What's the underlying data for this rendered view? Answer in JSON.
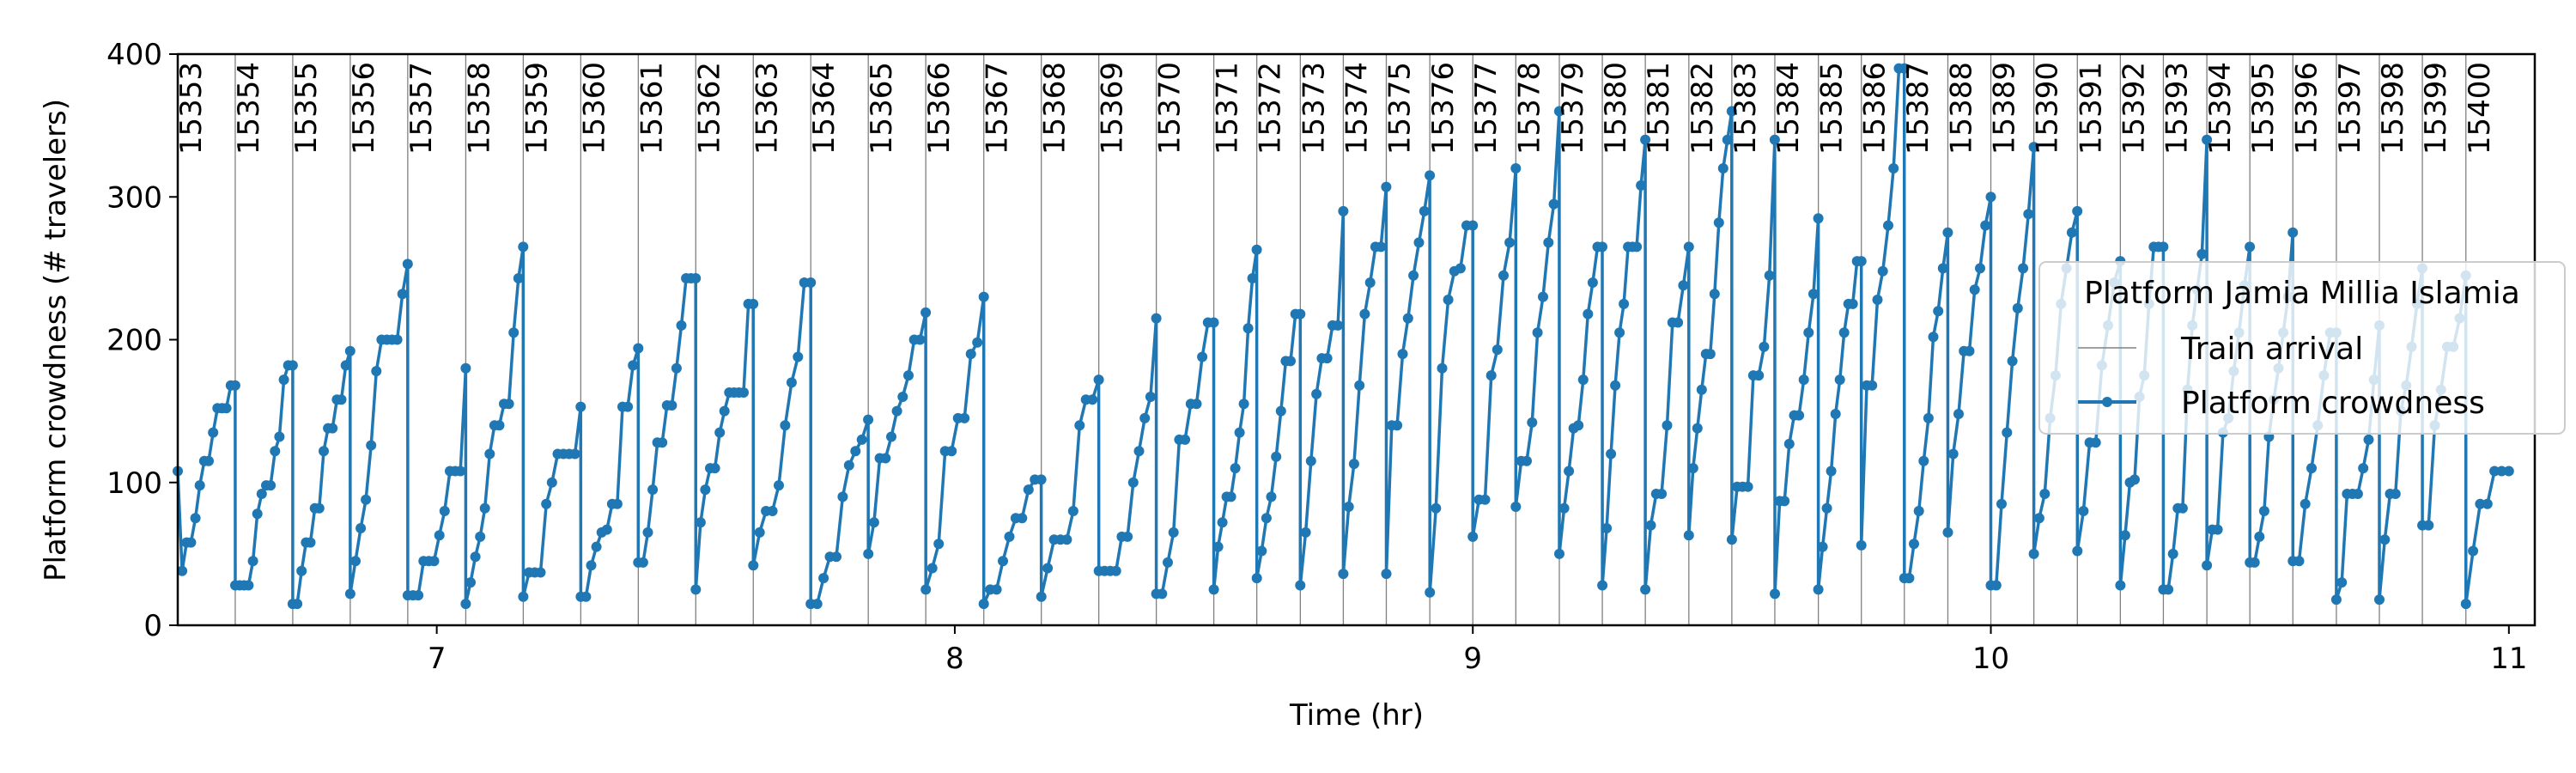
{
  "chart_data": {
    "type": "line",
    "xlabel": "Time (hr)",
    "ylabel": "Platform crowdness (# travelers)",
    "xlim": [
      6.5,
      11.05
    ],
    "ylim": [
      0,
      400
    ],
    "xticks": [
      7,
      8,
      9,
      10,
      11
    ],
    "yticks": [
      0,
      100,
      200,
      300,
      400
    ],
    "grid": false,
    "legend": {
      "title": "Platform Jamia Millia Islamia",
      "placement": "right",
      "entries": [
        "Train arrival",
        "Platform crowdness"
      ]
    },
    "colors": {
      "crowdness": "#1f77b4",
      "train_arrival": "#808080"
    },
    "train_arrivals": {
      "name": "Train arrival",
      "trains": [
        "15353",
        "15354",
        "15355",
        "15356",
        "15357",
        "15358",
        "15359",
        "15360",
        "15361",
        "15362",
        "15363",
        "15364",
        "15365",
        "15366",
        "15367",
        "15368",
        "15369",
        "15370",
        "15371",
        "15372",
        "15373",
        "15374",
        "15375",
        "15376",
        "15377",
        "15378",
        "15379",
        "15380",
        "15381",
        "15382",
        "15383",
        "15384",
        "15385",
        "15386",
        "15387",
        "15388",
        "15389",
        "15390",
        "15391",
        "15392",
        "15393",
        "15394",
        "15395",
        "15396",
        "15397",
        "15398",
        "15399",
        "15400"
      ],
      "times": [
        6.5,
        6.611,
        6.722,
        6.833,
        6.944,
        7.056,
        7.167,
        7.278,
        7.389,
        7.5,
        7.611,
        7.722,
        7.833,
        7.944,
        8.056,
        8.167,
        8.278,
        8.389,
        8.5,
        8.583,
        8.667,
        8.75,
        8.833,
        8.917,
        9.0,
        9.083,
        9.167,
        9.25,
        9.333,
        9.417,
        9.5,
        9.583,
        9.667,
        9.75,
        9.833,
        9.917,
        10.0,
        10.083,
        10.167,
        10.25,
        10.333,
        10.417,
        10.5,
        10.583,
        10.667,
        10.75,
        10.833,
        10.917
      ]
    },
    "series": [
      {
        "name": "Platform crowdness",
        "segments": [
          {
            "start": 6.5,
            "end": 6.611,
            "values": [
              108,
              38,
              58,
              58,
              75,
              98,
              115,
              115,
              135,
              152,
              152,
              152,
              168,
              168
            ]
          },
          {
            "start": 6.611,
            "end": 6.722,
            "values": [
              28,
              28,
              28,
              28,
              45,
              78,
              92,
              98,
              98,
              122,
              132,
              172,
              182,
              182
            ]
          },
          {
            "start": 6.722,
            "end": 6.833,
            "values": [
              15,
              15,
              38,
              58,
              58,
              82,
              82,
              122,
              138,
              138,
              158,
              158,
              182,
              192
            ]
          },
          {
            "start": 6.833,
            "end": 6.944,
            "values": [
              22,
              45,
              68,
              88,
              126,
              178,
              200,
              200,
              200,
              200,
              232,
              253
            ]
          },
          {
            "start": 6.944,
            "end": 7.056,
            "values": [
              21,
              21,
              21,
              45,
              45,
              45,
              63,
              80,
              108,
              108,
              108,
              180
            ]
          },
          {
            "start": 7.056,
            "end": 7.167,
            "values": [
              15,
              30,
              48,
              62,
              82,
              120,
              140,
              140,
              155,
              155,
              205,
              243,
              265
            ]
          },
          {
            "start": 7.167,
            "end": 7.278,
            "values": [
              20,
              37,
              37,
              37,
              85,
              100,
              120,
              120,
              120,
              120,
              153
            ]
          },
          {
            "start": 7.278,
            "end": 7.389,
            "values": [
              20,
              20,
              42,
              55,
              65,
              67,
              85,
              85,
              153,
              153,
              182,
              194
            ]
          },
          {
            "start": 7.389,
            "end": 7.5,
            "values": [
              44,
              44,
              65,
              95,
              128,
              128,
              154,
              154,
              180,
              210,
              243,
              243,
              243
            ]
          },
          {
            "start": 7.5,
            "end": 7.611,
            "values": [
              25,
              72,
              95,
              110,
              110,
              135,
              150,
              163,
              163,
              163,
              163,
              225,
              225
            ]
          },
          {
            "start": 7.611,
            "end": 7.722,
            "values": [
              42,
              65,
              80,
              80,
              98,
              140,
              170,
              188,
              240,
              240
            ]
          },
          {
            "start": 7.722,
            "end": 7.833,
            "values": [
              15,
              15,
              33,
              48,
              48,
              90,
              112,
              122,
              130,
              144
            ]
          },
          {
            "start": 7.833,
            "end": 7.944,
            "values": [
              50,
              72,
              117,
              117,
              132,
              150,
              160,
              175,
              200,
              200,
              219
            ]
          },
          {
            "start": 7.944,
            "end": 8.056,
            "values": [
              25,
              40,
              57,
              122,
              122,
              145,
              145,
              190,
              198,
              230
            ]
          },
          {
            "start": 8.056,
            "end": 8.167,
            "values": [
              15,
              25,
              25,
              45,
              62,
              75,
              75,
              95,
              102,
              102
            ]
          },
          {
            "start": 8.167,
            "end": 8.278,
            "values": [
              20,
              40,
              60,
              60,
              60,
              80,
              140,
              158,
              158,
              172
            ]
          },
          {
            "start": 8.278,
            "end": 8.389,
            "values": [
              38,
              38,
              38,
              38,
              62,
              62,
              100,
              122,
              145,
              160,
              215
            ]
          },
          {
            "start": 8.389,
            "end": 8.5,
            "values": [
              22,
              22,
              44,
              65,
              130,
              130,
              155,
              155,
              188,
              212,
              212
            ]
          },
          {
            "start": 8.5,
            "end": 8.583,
            "values": [
              25,
              55,
              72,
              90,
              90,
              110,
              135,
              155,
              208,
              243,
              263
            ]
          },
          {
            "start": 8.583,
            "end": 8.667,
            "values": [
              33,
              52,
              75,
              90,
              118,
              150,
              185,
              185,
              218,
              218
            ]
          },
          {
            "start": 8.667,
            "end": 8.75,
            "values": [
              28,
              65,
              115,
              162,
              187,
              187,
              210,
              210,
              290
            ]
          },
          {
            "start": 8.75,
            "end": 8.833,
            "values": [
              36,
              83,
              113,
              168,
              218,
              240,
              265,
              265,
              307
            ]
          },
          {
            "start": 8.833,
            "end": 8.917,
            "values": [
              36,
              140,
              140,
              190,
              215,
              245,
              268,
              290,
              315
            ]
          },
          {
            "start": 8.917,
            "end": 9.0,
            "values": [
              23,
              82,
              180,
              228,
              248,
              250,
              280,
              280
            ]
          },
          {
            "start": 9.0,
            "end": 9.083,
            "values": [
              62,
              88,
              88,
              175,
              193,
              245,
              268,
              320
            ]
          },
          {
            "start": 9.083,
            "end": 9.167,
            "values": [
              83,
              115,
              115,
              142,
              205,
              230,
              268,
              295,
              360
            ]
          },
          {
            "start": 9.167,
            "end": 9.25,
            "values": [
              50,
              82,
              108,
              138,
              140,
              172,
              218,
              240,
              265,
              265
            ]
          },
          {
            "start": 9.25,
            "end": 9.333,
            "values": [
              28,
              68,
              120,
              168,
              205,
              225,
              265,
              265,
              265,
              308,
              340
            ]
          },
          {
            "start": 9.333,
            "end": 9.417,
            "values": [
              25,
              70,
              92,
              92,
              140,
              212,
              212,
              238,
              265
            ]
          },
          {
            "start": 9.417,
            "end": 9.5,
            "values": [
              63,
              110,
              138,
              165,
              190,
              190,
              232,
              282,
              320,
              340,
              360
            ]
          },
          {
            "start": 9.5,
            "end": 9.583,
            "values": [
              60,
              97,
              97,
              97,
              175,
              175,
              195,
              245,
              340
            ]
          },
          {
            "start": 9.583,
            "end": 9.667,
            "values": [
              22,
              87,
              87,
              127,
              147,
              147,
              172,
              205,
              232,
              285
            ]
          },
          {
            "start": 9.667,
            "end": 9.75,
            "values": [
              25,
              55,
              82,
              108,
              148,
              172,
              205,
              225,
              225,
              255,
              255
            ]
          },
          {
            "start": 9.75,
            "end": 9.833,
            "values": [
              56,
              168,
              168,
              228,
              248,
              280,
              320,
              390,
              390
            ]
          },
          {
            "start": 9.833,
            "end": 9.917,
            "values": [
              33,
              33,
              57,
              80,
              115,
              145,
              202,
              220,
              250,
              275
            ]
          },
          {
            "start": 9.917,
            "end": 10.0,
            "values": [
              65,
              120,
              148,
              192,
              192,
              235,
              250,
              280,
              300
            ]
          },
          {
            "start": 10.0,
            "end": 10.083,
            "values": [
              28,
              28,
              85,
              135,
              185,
              222,
              250,
              288,
              335
            ]
          },
          {
            "start": 10.083,
            "end": 10.167,
            "values": [
              50,
              75,
              92,
              145,
              175,
              225,
              250,
              275,
              290
            ]
          },
          {
            "start": 10.167,
            "end": 10.25,
            "values": [
              52,
              80,
              128,
              128,
              182,
              210,
              240,
              255
            ]
          },
          {
            "start": 10.25,
            "end": 10.333,
            "values": [
              28,
              63,
              100,
              102,
              160,
              175,
              225,
              265,
              265,
              265
            ]
          },
          {
            "start": 10.333,
            "end": 10.417,
            "values": [
              25,
              25,
              50,
              82,
              82,
              165,
              210,
              235,
              260,
              340
            ]
          },
          {
            "start": 10.417,
            "end": 10.5,
            "values": [
              42,
              67,
              67,
              135,
              145,
              178,
              205,
              238,
              265
            ]
          },
          {
            "start": 10.5,
            "end": 10.583,
            "values": [
              44,
              44,
              62,
              80,
              132,
              158,
              180,
              205,
              230,
              275
            ]
          },
          {
            "start": 10.583,
            "end": 10.667,
            "values": [
              45,
              45,
              85,
              110,
              140,
              175,
              205,
              205
            ]
          },
          {
            "start": 10.667,
            "end": 10.75,
            "values": [
              18,
              30,
              92,
              92,
              92,
              110,
              130,
              172,
              210
            ]
          },
          {
            "start": 10.75,
            "end": 10.833,
            "values": [
              18,
              60,
              92,
              92,
              150,
              168,
              195,
              225,
              250
            ]
          },
          {
            "start": 10.833,
            "end": 10.917,
            "values": [
              70,
              70,
              140,
              165,
              195,
              195,
              215,
              245
            ]
          },
          {
            "start": 10.917,
            "end": 11.0,
            "values": [
              15,
              52,
              85,
              85,
              108,
              108,
              108
            ]
          }
        ]
      }
    ]
  }
}
